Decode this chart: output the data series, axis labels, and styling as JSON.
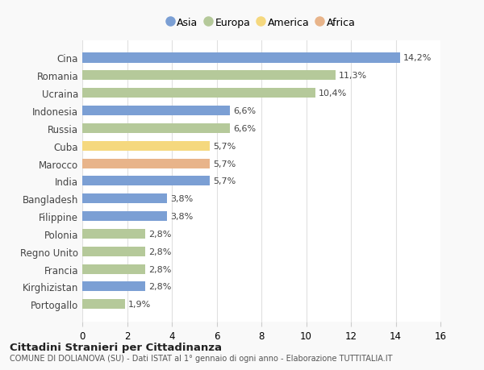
{
  "countries": [
    "Cina",
    "Romania",
    "Ucraina",
    "Indonesia",
    "Russia",
    "Cuba",
    "Marocco",
    "India",
    "Bangladesh",
    "Filippine",
    "Polonia",
    "Regno Unito",
    "Francia",
    "Kirghizistan",
    "Portogallo"
  ],
  "values": [
    14.2,
    11.3,
    10.4,
    6.6,
    6.6,
    5.7,
    5.7,
    5.7,
    3.8,
    3.8,
    2.8,
    2.8,
    2.8,
    2.8,
    1.9
  ],
  "labels": [
    "14,2%",
    "11,3%",
    "10,4%",
    "6,6%",
    "6,6%",
    "5,7%",
    "5,7%",
    "5,7%",
    "3,8%",
    "3,8%",
    "2,8%",
    "2,8%",
    "2,8%",
    "2,8%",
    "1,9%"
  ],
  "continents": [
    "Asia",
    "Europa",
    "Europa",
    "Asia",
    "Europa",
    "America",
    "Africa",
    "Asia",
    "Asia",
    "Asia",
    "Europa",
    "Europa",
    "Europa",
    "Asia",
    "Europa"
  ],
  "colors": {
    "Asia": "#7b9fd4",
    "Europa": "#b5c99a",
    "America": "#f5d87e",
    "Africa": "#e8b48a"
  },
  "legend_order": [
    "Asia",
    "Europa",
    "America",
    "Africa"
  ],
  "xlim": [
    0,
    16
  ],
  "xticks": [
    0,
    2,
    4,
    6,
    8,
    10,
    12,
    14,
    16
  ],
  "title": "Cittadini Stranieri per Cittadinanza",
  "subtitle": "COMUNE DI DOLIANOVA (SU) - Dati ISTAT al 1° gennaio di ogni anno - Elaborazione TUTTITALIA.IT",
  "bg_color": "#f9f9f9",
  "bar_bg_color": "#ffffff",
  "grid_color": "#e0e0e0"
}
